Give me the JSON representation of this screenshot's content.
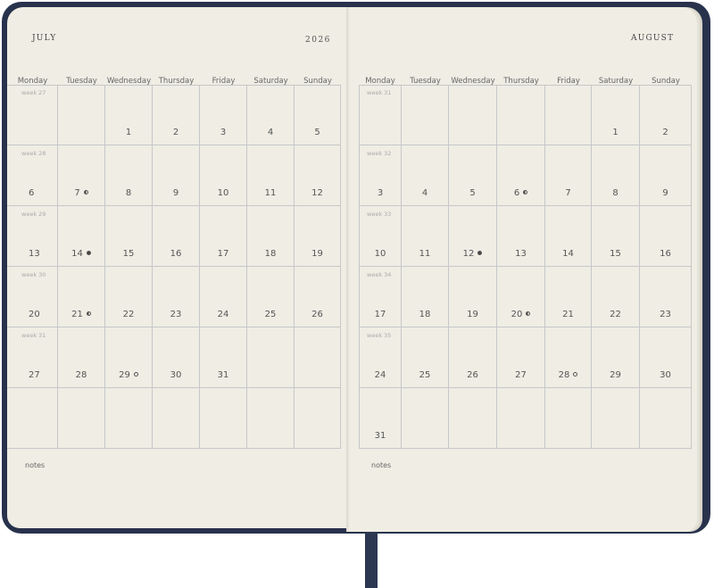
{
  "spread": {
    "left": {
      "month": "JULY",
      "year": "2026",
      "day_names": [
        "Monday",
        "Tuesday",
        "Wednesday",
        "Thursday",
        "Friday",
        "Saturday",
        "Sunday"
      ],
      "weeks": [
        {
          "label": "week 27",
          "days": [
            "",
            "",
            "1",
            "2",
            "3",
            "4",
            "5"
          ]
        },
        {
          "label": "week 28",
          "days": [
            "6",
            "7",
            "8",
            "9",
            "10",
            "11",
            "12"
          ]
        },
        {
          "label": "week 29",
          "days": [
            "13",
            "14",
            "15",
            "16",
            "17",
            "18",
            "19"
          ]
        },
        {
          "label": "week 30",
          "days": [
            "20",
            "21",
            "22",
            "23",
            "24",
            "25",
            "26"
          ]
        },
        {
          "label": "week 31",
          "days": [
            "27",
            "28",
            "29",
            "30",
            "31",
            "",
            ""
          ]
        },
        {
          "label": "",
          "days": [
            "",
            "",
            "",
            "",
            "",
            "",
            ""
          ]
        }
      ],
      "moon_phases": {
        "7": "half",
        "14": "new",
        "21": "half",
        "29": "full"
      },
      "notes_label": "notes"
    },
    "right": {
      "month": "AUGUST",
      "day_names": [
        "Monday",
        "Tuesday",
        "Wednesday",
        "Thursday",
        "Friday",
        "Saturday",
        "Sunday"
      ],
      "weeks": [
        {
          "label": "week 31",
          "days": [
            "",
            "",
            "",
            "",
            "",
            "1",
            "2"
          ]
        },
        {
          "label": "week 32",
          "days": [
            "3",
            "4",
            "5",
            "6",
            "7",
            "8",
            "9"
          ]
        },
        {
          "label": "week 33",
          "days": [
            "10",
            "11",
            "12",
            "13",
            "14",
            "15",
            "16"
          ]
        },
        {
          "label": "week 34",
          "days": [
            "17",
            "18",
            "19",
            "20",
            "21",
            "22",
            "23"
          ]
        },
        {
          "label": "week 35",
          "days": [
            "24",
            "25",
            "26",
            "27",
            "28",
            "29",
            "30"
          ]
        },
        {
          "label": "",
          "days": [
            "31",
            "",
            "",
            "",
            "",
            "",
            ""
          ]
        }
      ],
      "moon_phases": {
        "6": "half",
        "12": "new",
        "20": "half",
        "28": "full"
      },
      "notes_label": "notes"
    }
  },
  "colors": {
    "cover": "#28324c",
    "paper": "#efede4",
    "grid": "#c6c8c8"
  }
}
